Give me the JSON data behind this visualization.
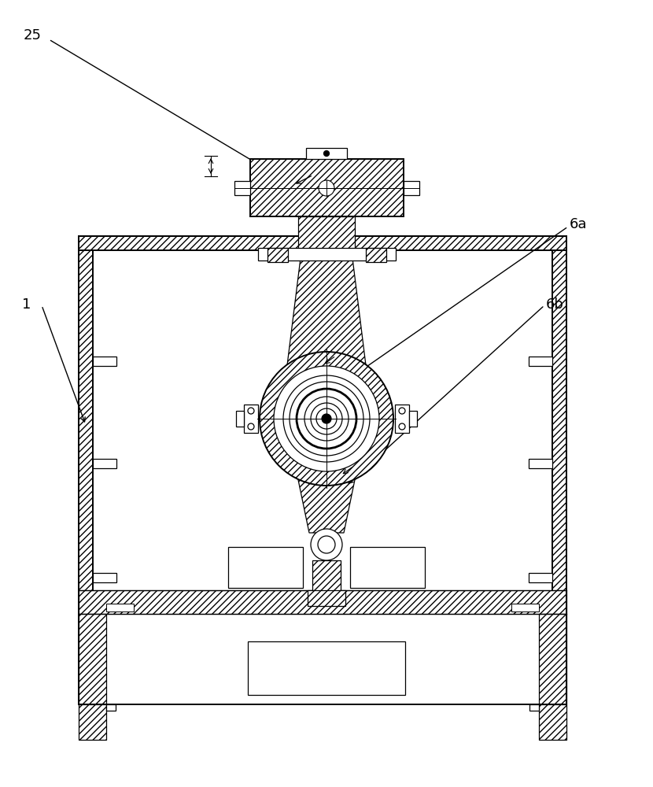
{
  "bg_color": "#ffffff",
  "lc": "#000000",
  "label_fontsize": 13,
  "fig_width": 8.3,
  "fig_height": 10.0
}
